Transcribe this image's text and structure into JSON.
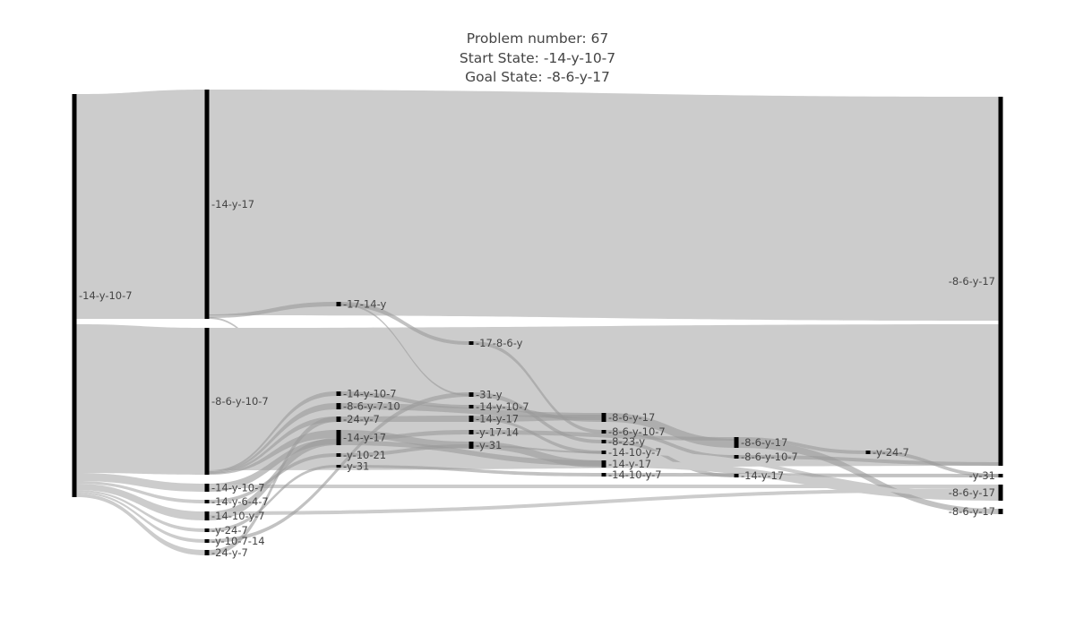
{
  "title": {
    "line1": "Problem number: 67",
    "line2": "Start State: -14-y-10-7",
    "line3": "Goal State: -8-6-y-17"
  },
  "diagram": {
    "type": "sankey",
    "colors": {
      "node": "#000000",
      "link": "#cccccc",
      "link_dark": "#999999",
      "label": "#444444",
      "background": "#ffffff"
    },
    "nodes": [
      {
        "id": "n0",
        "label": "-14-y-10-7",
        "stage": 0
      },
      {
        "id": "n1",
        "label": "-14-y-17",
        "stage": 1
      },
      {
        "id": "n2",
        "label": "-8-6-y-10-7",
        "stage": 1
      },
      {
        "id": "n3",
        "label": "-14-y-10-7",
        "stage": 1
      },
      {
        "id": "n4",
        "label": "-14-y-6-4-7",
        "stage": 1
      },
      {
        "id": "n5",
        "label": "-14-10-y-7",
        "stage": 1
      },
      {
        "id": "n6",
        "label": "-y-24-7",
        "stage": 1
      },
      {
        "id": "n7",
        "label": "-y-10-7-14",
        "stage": 1
      },
      {
        "id": "n8",
        "label": "-24-y-7",
        "stage": 1
      },
      {
        "id": "n9",
        "label": "-17-14-y",
        "stage": 2
      },
      {
        "id": "n10",
        "label": "-14-y-10-7",
        "stage": 2
      },
      {
        "id": "n11",
        "label": "-8-6-y-7-10",
        "stage": 2
      },
      {
        "id": "n12",
        "label": "-24-y-7",
        "stage": 2
      },
      {
        "id": "n13",
        "label": "-14-y-17",
        "stage": 2
      },
      {
        "id": "n14",
        "label": "-y-10-21",
        "stage": 2
      },
      {
        "id": "n15",
        "label": "-y-31",
        "stage": 2
      },
      {
        "id": "n16",
        "label": "-17-8-6-y",
        "stage": 3
      },
      {
        "id": "n17",
        "label": "-31-y",
        "stage": 3
      },
      {
        "id": "n18",
        "label": "-14-y-10-7",
        "stage": 3
      },
      {
        "id": "n19",
        "label": "-14-y-17",
        "stage": 3
      },
      {
        "id": "n20",
        "label": "-y-17-14",
        "stage": 3
      },
      {
        "id": "n21",
        "label": "-y-31",
        "stage": 3
      },
      {
        "id": "n22",
        "label": "-8-6-y-17",
        "stage": 4
      },
      {
        "id": "n23",
        "label": "-8-6-y-10-7",
        "stage": 4
      },
      {
        "id": "n24",
        "label": "-8-23-y",
        "stage": 4
      },
      {
        "id": "n25",
        "label": "-14-10-y-7",
        "stage": 4
      },
      {
        "id": "n26",
        "label": "-14-y-17",
        "stage": 4
      },
      {
        "id": "n27",
        "label": "-14-10-y-7",
        "stage": 4
      },
      {
        "id": "n28",
        "label": "-8-6-y-17",
        "stage": 5
      },
      {
        "id": "n29",
        "label": "-8-6-y-10-7",
        "stage": 5
      },
      {
        "id": "n30",
        "label": "-14-y-17",
        "stage": 5
      },
      {
        "id": "n31",
        "label": "-y-24-7",
        "stage": 6
      },
      {
        "id": "n32",
        "label": "-8-6-y-17",
        "stage": 7
      },
      {
        "id": "n33",
        "label": "-y-31",
        "stage": 7
      },
      {
        "id": "n34",
        "label": "-8-6-y-17",
        "stage": 7
      },
      {
        "id": "n35",
        "label": "-8-6-y-17",
        "stage": 7
      }
    ]
  }
}
